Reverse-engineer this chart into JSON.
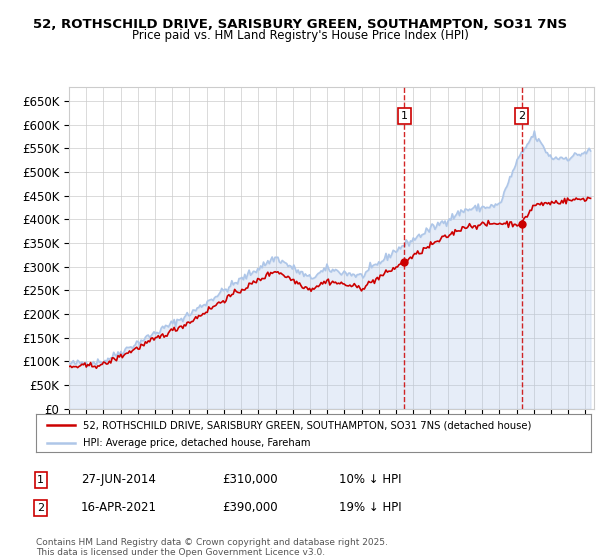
{
  "title_line1": "52, ROTHSCHILD DRIVE, SARISBURY GREEN, SOUTHAMPTON, SO31 7NS",
  "title_line2": "Price paid vs. HM Land Registry's House Price Index (HPI)",
  "ylim": [
    0,
    680000
  ],
  "yticks": [
    0,
    50000,
    100000,
    150000,
    200000,
    250000,
    300000,
    350000,
    400000,
    450000,
    500000,
    550000,
    600000,
    650000
  ],
  "ytick_labels": [
    "£0",
    "£50K",
    "£100K",
    "£150K",
    "£200K",
    "£250K",
    "£300K",
    "£350K",
    "£400K",
    "£450K",
    "£500K",
    "£550K",
    "£600K",
    "£650K"
  ],
  "hpi_color": "#aec6e8",
  "price_color": "#cc0000",
  "vline_color": "#cc0000",
  "transaction1_year": 2014.49,
  "transaction1_price": 310000,
  "transaction1_label": "1",
  "transaction1_date": "27-JUN-2014",
  "transaction1_price_str": "£310,000",
  "transaction1_hpi": "10% ↓ HPI",
  "transaction2_year": 2021.29,
  "transaction2_price": 390000,
  "transaction2_label": "2",
  "transaction2_date": "16-APR-2021",
  "transaction2_price_str": "£390,000",
  "transaction2_hpi": "19% ↓ HPI",
  "legend_line1": "52, ROTHSCHILD DRIVE, SARISBURY GREEN, SOUTHAMPTON, SO31 7NS (detached house)",
  "legend_line2": "HPI: Average price, detached house, Fareham",
  "footer": "Contains HM Land Registry data © Crown copyright and database right 2025.\nThis data is licensed under the Open Government Licence v3.0.",
  "background_color": "#ffffff",
  "plot_bg_color": "#ffffff",
  "grid_color": "#cccccc"
}
